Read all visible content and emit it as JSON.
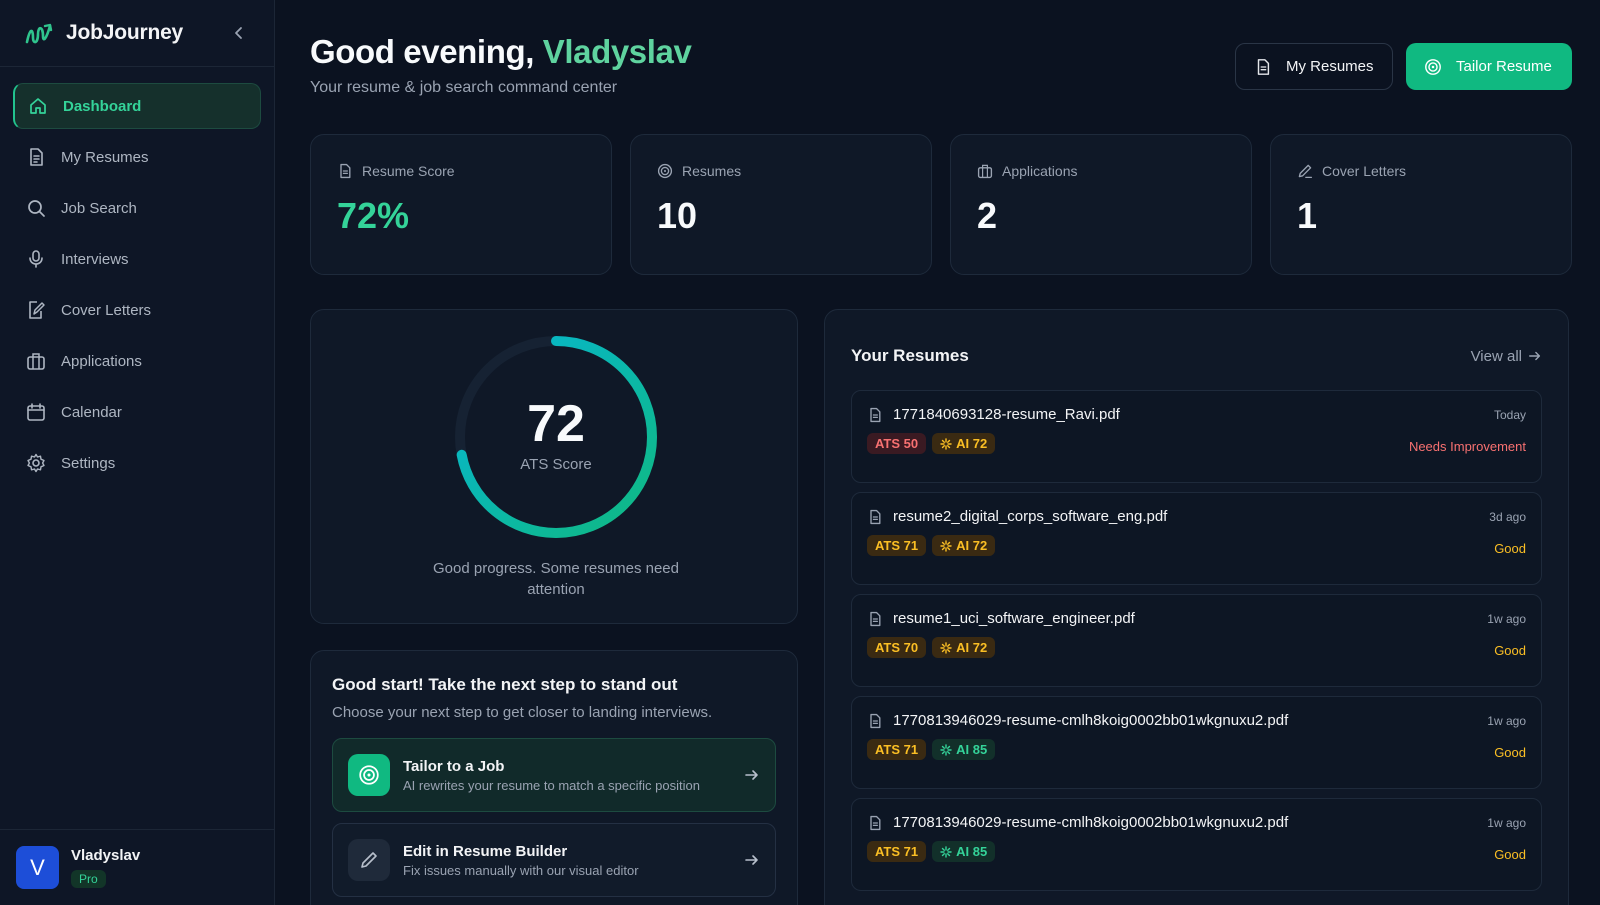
{
  "brand": {
    "name": "JobJourney"
  },
  "nav": [
    {
      "label": "Dashboard",
      "icon": "home-icon",
      "active": true
    },
    {
      "label": "My Resumes",
      "icon": "document-icon"
    },
    {
      "label": "Job Search",
      "icon": "search-icon"
    },
    {
      "label": "Interviews",
      "icon": "microphone-icon"
    },
    {
      "label": "Cover Letters",
      "icon": "edit-document-icon"
    },
    {
      "label": "Applications",
      "icon": "briefcase-icon"
    },
    {
      "label": "Calendar",
      "icon": "calendar-icon"
    },
    {
      "label": "Settings",
      "icon": "gear-icon"
    }
  ],
  "user": {
    "initial": "V",
    "name": "Vladyslav",
    "plan": "Pro"
  },
  "header": {
    "greeting_prefix": "Good evening, ",
    "greeting_name": "Vladyslav",
    "subtitle": "Your resume & job search command center",
    "my_resumes_label": "My Resumes",
    "tailor_label": "Tailor Resume"
  },
  "stats": [
    {
      "label": "Resume Score",
      "value": "72%",
      "icon": "document-icon"
    },
    {
      "label": "Resumes",
      "value": "10",
      "icon": "target-icon"
    },
    {
      "label": "Applications",
      "value": "2",
      "icon": "briefcase-icon"
    },
    {
      "label": "Cover Letters",
      "value": "1",
      "icon": "pen-icon"
    }
  ],
  "score": {
    "value": "72",
    "label": "ATS Score",
    "percent": 72,
    "message": "Good progress. Some resumes need attention"
  },
  "next_steps": {
    "title": "Good start! Take the next step to stand out",
    "subtitle": "Choose your next step to get closer to landing interviews.",
    "actions": [
      {
        "title": "Tailor to a Job",
        "desc": "AI rewrites your resume to match a specific position"
      },
      {
        "title": "Edit in Resume Builder",
        "desc": "Fix issues manually with our visual editor"
      }
    ]
  },
  "resumes": {
    "title": "Your Resumes",
    "view_all": "View all",
    "items": [
      {
        "name": "1771840693128-resume_Ravi.pdf",
        "date": "Today",
        "ats": "ATS 50",
        "ai": "AI 72",
        "status": "Needs Improvement",
        "ats_tone": "red",
        "ai_tone": "amber",
        "status_tone": "red"
      },
      {
        "name": "resume2_digital_corps_software_eng.pdf",
        "date": "3d ago",
        "ats": "ATS 71",
        "ai": "AI 72",
        "status": "Good",
        "ats_tone": "amber",
        "ai_tone": "amber",
        "status_tone": "amber"
      },
      {
        "name": "resume1_uci_software_engineer.pdf",
        "date": "1w ago",
        "ats": "ATS 70",
        "ai": "AI 72",
        "status": "Good",
        "ats_tone": "amber",
        "ai_tone": "amber",
        "status_tone": "amber"
      },
      {
        "name": "1770813946029-resume-cmlh8koig0002bb01wkgnuxu2.pdf",
        "date": "1w ago",
        "ats": "ATS 71",
        "ai": "AI 85",
        "status": "Good",
        "ats_tone": "amber",
        "ai_tone": "green",
        "status_tone": "amber"
      },
      {
        "name": "1770813946029-resume-cmlh8koig0002bb01wkgnuxu2.pdf",
        "date": "1w ago",
        "ats": "ATS 71",
        "ai": "AI 85",
        "status": "Good",
        "ats_tone": "amber",
        "ai_tone": "green",
        "status_tone": "amber"
      }
    ]
  },
  "colors": {
    "accent": "#10b981",
    "accent_text": "#34d399",
    "ring_start": "#10b981",
    "ring_end": "#06b6d4"
  }
}
